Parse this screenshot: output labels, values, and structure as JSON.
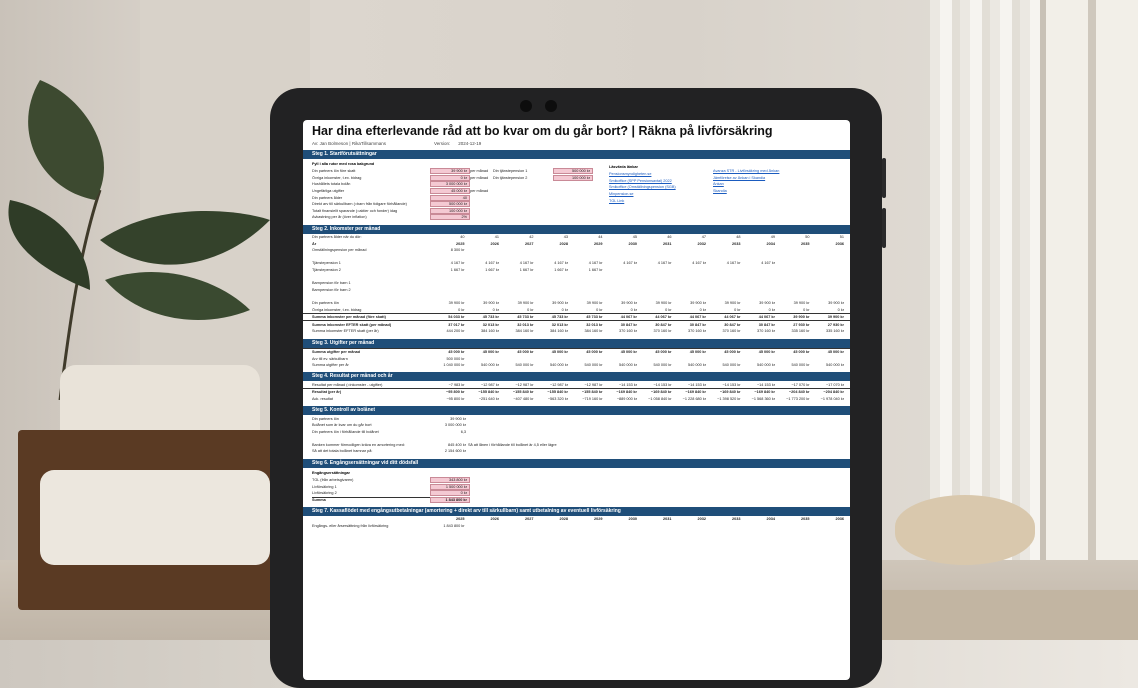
{
  "sheet": {
    "title": "Har dina efterlevande råd att bo kvar om du går bort? | Räkna på livförsäkring",
    "author": "Av: Jan Bolmeson | RikaTillsammans",
    "version_label": "Version:",
    "version": "2024-12-19"
  },
  "step1": {
    "header": "Steg 1. Startförutsättningar",
    "note": "Fyll i alla rutor med rosa bakgrund",
    "rows": [
      {
        "label": "Din partners lön före skatt",
        "value": "39 900 kr",
        "unit": "per månad"
      },
      {
        "label": "Övriga inkomster, t.ex. bidrag",
        "value": "0 kr",
        "unit": "per månad"
      },
      {
        "label": "Hushållets totala bolån",
        "value": "3 000 000 kr",
        "unit": ""
      },
      {
        "label": "Ungefärliga utgifter",
        "value": "45 000 kr",
        "unit": "per månad"
      },
      {
        "label": "Din partners ålder",
        "value": "40",
        "unit": ""
      },
      {
        "label": "Direkt arv till särkullbarn (=barn från tidigare förhållande)",
        "value": "500 000 kr",
        "unit": ""
      },
      {
        "label": "Totalt finansiellt sparande (=aktier och fonder) idag",
        "value": "100 000 kr",
        "unit": ""
      },
      {
        "label": "Avkastning per år (över inflation)",
        "value": "2%",
        "unit": ""
      }
    ],
    "pension_rows": [
      {
        "label": "Din tjänstepension 1",
        "value": "500 000 kr"
      },
      {
        "label": "Din tjänstepension 2",
        "value": "100 000 kr"
      }
    ],
    "links_title": "Läsvärda länkar",
    "links_left": [
      "Pensionsmyndigheten.se",
      "Smikoffice (SPP Pensionsavtal) 2022",
      "Smikoffice (Omställningspension (SGB)",
      "Minpension.se",
      "TGL Link"
    ],
    "links_right": [
      "Avanza STR - Livförsäkring med Änkan",
      "Jämförelse av Änkan i Skandia",
      "Änkan",
      "Skandia"
    ]
  },
  "step2": {
    "header": "Steg 2. Inkomster per månad",
    "age_label": "Din partners ålder när du dör:",
    "year_label": "År",
    "ages": [
      "40",
      "41",
      "42",
      "43",
      "44",
      "45",
      "46",
      "47",
      "48",
      "49",
      "50",
      "51"
    ],
    "years": [
      "2025",
      "2026",
      "2027",
      "2028",
      "2029",
      "2030",
      "2031",
      "2032",
      "2033",
      "2034",
      "2035",
      "2036"
    ],
    "rows": [
      {
        "label": "Omställningspension per månad",
        "values": [
          "8 300 kr",
          "",
          "",
          "",
          "",
          "",
          "",
          "",
          "",
          "",
          "",
          ""
        ]
      },
      {
        "label": "",
        "values": [
          "",
          "",
          "",
          "",
          "",
          "",
          "",
          "",
          "",
          "",
          "",
          ""
        ]
      },
      {
        "label": "Tjänstepension 1",
        "values": [
          "4 167 kr",
          "4 167 kr",
          "4 167 kr",
          "4 167 kr",
          "4 167 kr",
          "4 167 kr",
          "4 167 kr",
          "4 167 kr",
          "4 167 kr",
          "4 167 kr",
          "",
          ""
        ]
      },
      {
        "label": "Tjänstepension 2",
        "values": [
          "1 667 kr",
          "1 667 kr",
          "1 667 kr",
          "1 667 kr",
          "1 667 kr",
          "",
          "",
          "",
          "",
          "",
          "",
          ""
        ]
      },
      {
        "label": "",
        "values": [
          "",
          "",
          "",
          "",
          "",
          "",
          "",
          "",
          "",
          "",
          "",
          ""
        ]
      },
      {
        "label": "Barnpension för barn 1",
        "values": [
          "",
          "",
          "",
          "",
          "",
          "",
          "",
          "",
          "",
          "",
          "",
          ""
        ]
      },
      {
        "label": "Barnpension för barn 2",
        "values": [
          "",
          "",
          "",
          "",
          "",
          "",
          "",
          "",
          "",
          "",
          "",
          ""
        ]
      },
      {
        "label": "",
        "values": [
          "",
          "",
          "",
          "",
          "",
          "",
          "",
          "",
          "",
          "",
          "",
          ""
        ]
      },
      {
        "label": "Din partners lön",
        "values": [
          "39 900 kr",
          "39 900 kr",
          "39 900 kr",
          "39 900 kr",
          "39 900 kr",
          "39 900 kr",
          "39 900 kr",
          "39 900 kr",
          "39 900 kr",
          "39 900 kr",
          "39 900 kr",
          "39 900 kr"
        ]
      },
      {
        "label": "Övriga inkomster, t.ex. bidrag",
        "values": [
          "0 kr",
          "0 kr",
          "0 kr",
          "0 kr",
          "0 kr",
          "0 kr",
          "0 kr",
          "0 kr",
          "0 kr",
          "0 kr",
          "0 kr",
          "0 kr"
        ]
      }
    ],
    "sum_before": {
      "label": "Summa inkomster per månad (före skatt)",
      "values": [
        "54 033 kr",
        "45 733 kr",
        "45 733 kr",
        "45 733 kr",
        "45 733 kr",
        "44 067 kr",
        "44 067 kr",
        "44 067 kr",
        "44 067 kr",
        "44 067 kr",
        "39 900 kr",
        "39 900 kr"
      ]
    },
    "sum_after": {
      "label": "Summa inkomster EFTER skatt (per månad)",
      "values": [
        "37 017 kr",
        "32 013 kr",
        "32 013 kr",
        "32 013 kr",
        "32 013 kr",
        "30 847 kr",
        "30 847 kr",
        "30 847 kr",
        "30 847 kr",
        "30 847 kr",
        "27 930 kr",
        "27 930 kr"
      ]
    },
    "sum_year": {
      "label": "Summa inkomster EFTER skatt (per år)",
      "values": [
        "444 200 kr",
        "384 160 kr",
        "384 160 kr",
        "384 160 kr",
        "384 160 kr",
        "370 160 kr",
        "370 160 kr",
        "370 160 kr",
        "370 160 kr",
        "370 160 kr",
        "335 160 kr",
        "335 160 kr"
      ]
    }
  },
  "step3": {
    "header": "Steg 3. Utgifter per månad",
    "rows": [
      {
        "label": "Summa utgifter per månad",
        "bold": true,
        "values": [
          "45 000 kr",
          "45 000 kr",
          "45 000 kr",
          "45 000 kr",
          "45 000 kr",
          "45 000 kr",
          "45 000 kr",
          "45 000 kr",
          "45 000 kr",
          "45 000 kr",
          "45 000 kr",
          "45 000 kr"
        ]
      },
      {
        "label": "Arv till ev. särkullbarn",
        "bold": false,
        "values": [
          "500 000 kr",
          "",
          "",
          "",
          "",
          "",
          "",
          "",
          "",
          "",
          "",
          ""
        ]
      },
      {
        "label": "Summa utgifter per år",
        "bold": false,
        "values": [
          "1 040 000 kr",
          "540 000 kr",
          "540 000 kr",
          "540 000 kr",
          "540 000 kr",
          "540 000 kr",
          "540 000 kr",
          "540 000 kr",
          "540 000 kr",
          "540 000 kr",
          "540 000 kr",
          "540 000 kr"
        ]
      }
    ]
  },
  "step4": {
    "header": "Steg 4. Resultat per månad och år",
    "rows": [
      {
        "label": "Resultat per månad (=inkomster - utgifter)",
        "bold": false,
        "values": [
          "−7 983 kr",
          "−12 987 kr",
          "−12 987 kr",
          "−12 987 kr",
          "−12 987 kr",
          "−14 153 kr",
          "−14 153 kr",
          "−14 153 kr",
          "−14 153 kr",
          "−14 153 kr",
          "−17 070 kr",
          "−17 070 kr"
        ]
      },
      {
        "label": "Resultat (per år)",
        "bold": true,
        "values": [
          "−95 800 kr",
          "−155 840 kr",
          "−155 840 kr",
          "−155 840 kr",
          "−155 840 kr",
          "−169 840 kr",
          "−169 840 kr",
          "−169 840 kr",
          "−169 840 kr",
          "−169 840 kr",
          "−204 840 kr",
          "−204 840 kr"
        ]
      },
      {
        "label": "Ack. resultat",
        "bold": false,
        "values": [
          "−95 800 kr",
          "−251 640 kr",
          "−407 480 kr",
          "−563 320 kr",
          "−719 160 kr",
          "−889 000 kr",
          "−1 058 840 kr",
          "−1 228 680 kr",
          "−1 398 520 kr",
          "−1 568 360 kr",
          "−1 773 200 kr",
          "−1 978 040 kr"
        ]
      }
    ]
  },
  "step5": {
    "header": "Steg 5. Kontroll av bolånet",
    "rows": [
      {
        "label": "Din partners lön",
        "value": "39 900 kr",
        "note": ""
      },
      {
        "label": "Bolånet som är kvar om du går bort",
        "value": "3 000 000 kr",
        "note": ""
      },
      {
        "label": "Din partners lön i förhållande till bolånet",
        "value": "6,3",
        "note": ""
      },
      {
        "label": "",
        "value": "",
        "note": ""
      },
      {
        "label": "Banken kommer förmodligen kräva en amortering med:",
        "value": "845 400 kr",
        "note": "Så att lånen i förhållande till bolånet är 4,5 eller lägre"
      },
      {
        "label": "Så att det totala bolånet hamnar på:",
        "value": "2 154 600 kr",
        "note": ""
      }
    ]
  },
  "step6": {
    "header": "Steg 6. Engångsersättningar vid ditt dödsfall",
    "sub": "Engångsersättningar",
    "rows": [
      {
        "label": "TGL (från arbetsgivaren)",
        "value": "343 800 kr"
      },
      {
        "label": "Livförsäkring 1",
        "value": "1 500 000 kr"
      },
      {
        "label": "Livförsäkring 2",
        "value": "0 kr"
      }
    ],
    "sum_label": "Summa",
    "sum_value": "1 843 800 kr"
  },
  "step7": {
    "header": "Steg 7. Kassaflödet med engångsutbetalningar (amortering + direkt arv till särkullbarn) samt utbetalning av eventuell livförsäkring",
    "years": [
      "2025",
      "2026",
      "2027",
      "2028",
      "2029",
      "2030",
      "2031",
      "2032",
      "2033",
      "2034",
      "2035",
      "2036"
    ],
    "row_label": "Engångs- eller årsersättning från livförsäkring",
    "row_value": "1 843 800 kr"
  },
  "colors": {
    "header_bg": "#1f4e79",
    "pink_input": "#f4c9d3",
    "tablet": "#222223"
  }
}
